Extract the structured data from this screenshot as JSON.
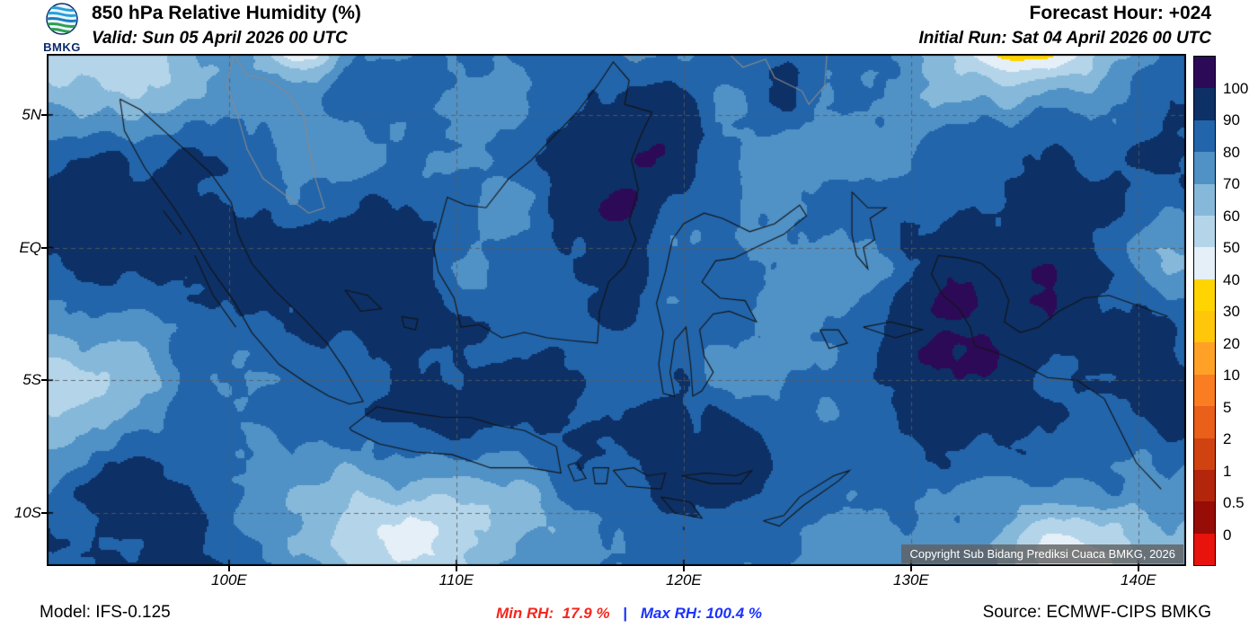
{
  "header": {
    "logo_text": "BMKG",
    "title": "850 hPa Relative Humidity (%)",
    "valid": "Valid: Sun 05 April 2026 00 UTC",
    "forecast_hour": "Forecast Hour: +024",
    "initial_run": "Initial Run: Sat 04 April 2026 00 UTC"
  },
  "map": {
    "copyright": "Copyright Sub Bidang Prediksi Cuaca BMKG, 2026",
    "lat_labels": [
      "5N",
      "EQ",
      "5S",
      "10S"
    ],
    "lon_labels": [
      "100E",
      "110E",
      "120E",
      "130E",
      "140E"
    ]
  },
  "colorbar": {
    "labels": [
      "100",
      "90",
      "80",
      "70",
      "60",
      "50",
      "40",
      "30",
      "20",
      "10",
      "5",
      "2",
      "1",
      "0.5",
      "0"
    ],
    "colors_top_to_bottom": [
      "#2d0a57",
      "#0d3066",
      "#2265ab",
      "#5091c6",
      "#86b8da",
      "#b4d5e9",
      "#e4eff7",
      "#ffd400",
      "#ffc60a",
      "#ffa127",
      "#fb7d21",
      "#ea5f19",
      "#d14211",
      "#b3260c",
      "#970c06",
      "#e8130c"
    ]
  },
  "footer": {
    "model": "Model: IFS-0.125",
    "min_rh_label": "Min RH:",
    "min_rh_value": "17.9 %",
    "separator": "|",
    "max_rh_label": "Max RH:",
    "max_rh_value": "100.4 %",
    "source": "Source: ECMWF-CIPS BMKG",
    "min_color": "#f5261c",
    "max_color": "#1a32ff"
  },
  "chart_data": {
    "type": "heatmap",
    "title": "850 hPa Relative Humidity (%)",
    "units": "%",
    "levels": [
      0,
      0.5,
      1,
      2,
      5,
      10,
      20,
      30,
      40,
      50,
      60,
      70,
      80,
      90,
      100
    ],
    "palette_low_to_high": [
      "#970c06",
      "#b3260c",
      "#d14211",
      "#ea5f19",
      "#fb7d21",
      "#ffa127",
      "#ffc60a",
      "#ffd400",
      "#e4eff7",
      "#b4d5e9",
      "#86b8da",
      "#5091c6",
      "#2265ab",
      "#0d3066"
    ],
    "extend_colors": {
      "below": "#e8130c",
      "above": "#2d0a57"
    },
    "x_ticks": [
      "100E",
      "110E",
      "120E",
      "130E",
      "140E"
    ],
    "y_ticks": [
      "10S",
      "5S",
      "EQ",
      "5N"
    ],
    "stats": {
      "min_rh": 17.9,
      "max_rh": 100.4
    },
    "legend_position": "right"
  }
}
